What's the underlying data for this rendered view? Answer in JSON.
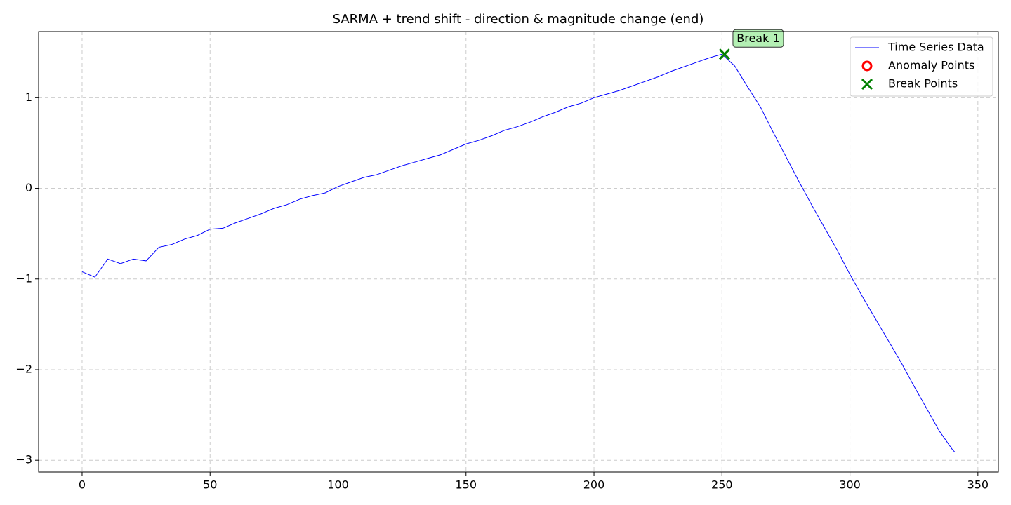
{
  "chart_data": {
    "type": "line",
    "title": "SARMA + trend shift - direction & magnitude change (end)",
    "xlim": [
      -17,
      358
    ],
    "ylim": [
      -3.13,
      1.73
    ],
    "xticks": [
      0,
      50,
      100,
      150,
      200,
      250,
      300,
      350
    ],
    "yticks": [
      {
        "value": -3,
        "label": "−3"
      },
      {
        "value": -2,
        "label": "−2"
      },
      {
        "value": -1,
        "label": "−1"
      },
      0,
      1
    ],
    "grid": true,
    "legend": "upper right",
    "series": [
      {
        "name": "Time Series Data",
        "color": "#0000ff",
        "marker": "line",
        "x": [
          0,
          5,
          10,
          15,
          20,
          25,
          30,
          35,
          40,
          45,
          50,
          55,
          60,
          65,
          70,
          75,
          80,
          85,
          90,
          95,
          100,
          105,
          110,
          115,
          120,
          125,
          130,
          135,
          140,
          145,
          150,
          155,
          160,
          165,
          170,
          175,
          180,
          185,
          190,
          195,
          200,
          205,
          210,
          215,
          220,
          225,
          230,
          235,
          240,
          245,
          250,
          255,
          260,
          265,
          270,
          275,
          280,
          285,
          290,
          295,
          300,
          305,
          310,
          315,
          320,
          325,
          330,
          335,
          340,
          341
        ],
        "values": [
          -0.92,
          -0.98,
          -0.78,
          -0.83,
          -0.78,
          -0.8,
          -0.65,
          -0.62,
          -0.56,
          -0.52,
          -0.45,
          -0.44,
          -0.38,
          -0.33,
          -0.28,
          -0.22,
          -0.18,
          -0.12,
          -0.08,
          -0.05,
          0.02,
          0.07,
          0.12,
          0.15,
          0.2,
          0.25,
          0.29,
          0.33,
          0.37,
          0.43,
          0.49,
          0.53,
          0.58,
          0.64,
          0.68,
          0.73,
          0.79,
          0.84,
          0.9,
          0.94,
          1.0,
          1.04,
          1.08,
          1.13,
          1.18,
          1.23,
          1.29,
          1.34,
          1.39,
          1.44,
          1.48,
          1.35,
          1.12,
          0.9,
          0.62,
          0.35,
          0.08,
          -0.18,
          -0.43,
          -0.68,
          -0.95,
          -1.2,
          -1.44,
          -1.68,
          -1.92,
          -2.18,
          -2.43,
          -2.68,
          -2.88,
          -2.91
        ]
      },
      {
        "name": "Anomaly Points",
        "color": "#ff0000",
        "marker": "circle",
        "x": [],
        "values": []
      },
      {
        "name": "Break Points",
        "color": "#008000",
        "marker": "cross",
        "x": [
          251
        ],
        "values": [
          1.48
        ]
      }
    ],
    "annotations": [
      {
        "text": "Break 1",
        "x": 251,
        "y": 1.48
      }
    ]
  }
}
